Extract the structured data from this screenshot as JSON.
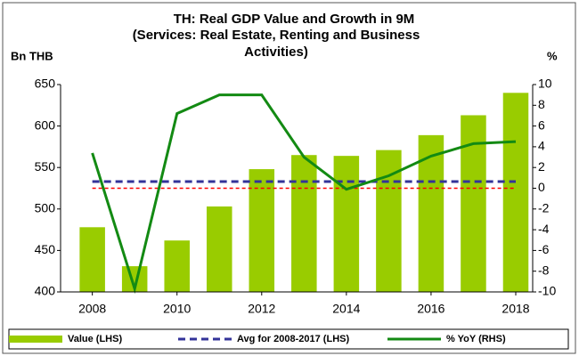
{
  "chart_data": {
    "type": "bar-line",
    "title": "TH: Real GDP Value and Growth in 9M",
    "subtitle": "(Services: Real Estate, Renting and Business Activities)",
    "ylabel": "Bn THB",
    "y2label": "%",
    "x": [
      2008,
      2009,
      2010,
      2011,
      2012,
      2013,
      2014,
      2015,
      2016,
      2017,
      2018
    ],
    "xlim": [
      2007.25,
      2018.4
    ],
    "xticks": [
      2008,
      2010,
      2012,
      2014,
      2016,
      2018
    ],
    "ylim": [
      400,
      650
    ],
    "yticks": [
      400,
      450,
      500,
      550,
      600,
      650
    ],
    "y2lim": [
      -10,
      10
    ],
    "y2ticks": [
      -10,
      -8,
      -6,
      -4,
      -2,
      0,
      2,
      4,
      6,
      8,
      10
    ],
    "series": [
      {
        "name": "Value (LHS)",
        "kind": "bar",
        "color": "#99cc00",
        "values": [
          478,
          431,
          462,
          503,
          548,
          565,
          564,
          571,
          589,
          613,
          640
        ]
      },
      {
        "name": "Avg for 2008-2017 (LHS)",
        "kind": "hline",
        "color": "#333399",
        "value": 533
      },
      {
        "name": "% YoY (RHS)",
        "kind": "line",
        "axis": "y2",
        "color": "#138a13",
        "values": [
          3.4,
          -9.7,
          7.2,
          9.0,
          9.0,
          3.0,
          -0.1,
          1.2,
          3.1,
          4.3,
          4.5
        ]
      }
    ],
    "zero_line_color": "#ff0000"
  }
}
